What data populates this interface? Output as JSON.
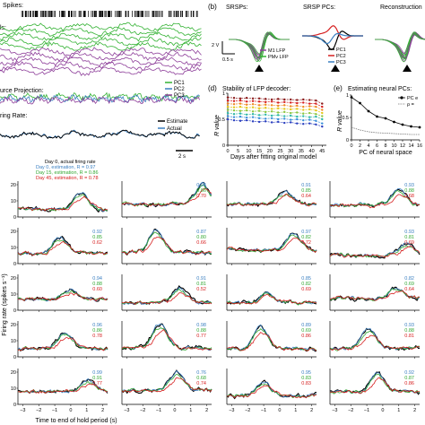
{
  "top": {
    "spikes_label": "Spikes:",
    "lfp_label": "ls:",
    "source_label": "urce Projection:",
    "rate_label": "ring Rate:",
    "pc_legend": [
      "PC1",
      "PC2",
      "PC3"
    ],
    "rate_legend": [
      "Estimate",
      "Actual"
    ],
    "scale_label": "2 s",
    "colors": {
      "green": "#33b233",
      "purple": "#8e3f9a",
      "blue": "#3a7fc1",
      "black": "#000000",
      "red": "#d62020",
      "gray": "#777777"
    }
  },
  "panel_b": {
    "letter": "(b)",
    "titles": [
      "SRSPs:",
      "SRSP PCs:",
      "Reconstruction"
    ],
    "scale_v": "2 V",
    "scale_t": "0.5 s",
    "legend": [
      "M1 LFP",
      "PMv LFP"
    ],
    "pc_legend": [
      "PC1",
      "PC2",
      "PC3"
    ]
  },
  "panel_d": {
    "letter": "(d)",
    "title": "Stability of LFP decoder:",
    "ylabel": "R value",
    "xlabel": "Days after fitting original model",
    "chart_data": {
      "type": "line",
      "x": [
        0,
        3,
        6,
        9,
        12,
        15,
        18,
        21,
        24,
        27,
        30,
        33,
        36,
        39,
        42,
        45
      ],
      "xticks": [
        0,
        5,
        10,
        15,
        20,
        25,
        30,
        35,
        40,
        45
      ],
      "yticks": [
        0,
        0.5,
        1
      ],
      "ylim": [
        0,
        1
      ],
      "xlim": [
        0,
        47
      ],
      "series": [
        {
          "color": "#8b1a1a",
          "values": [
            0.92,
            0.91,
            0.9,
            0.91,
            0.9,
            0.9,
            0.89,
            0.88,
            0.89,
            0.88,
            0.88,
            0.87,
            0.88,
            0.87,
            0.86,
            0.8
          ]
        },
        {
          "color": "#d62020",
          "values": [
            0.86,
            0.85,
            0.86,
            0.84,
            0.85,
            0.84,
            0.83,
            0.84,
            0.82,
            0.83,
            0.82,
            0.81,
            0.82,
            0.8,
            0.8,
            0.74
          ]
        },
        {
          "color": "#f08a24",
          "values": [
            0.8,
            0.79,
            0.8,
            0.78,
            0.79,
            0.77,
            0.78,
            0.77,
            0.76,
            0.77,
            0.75,
            0.76,
            0.74,
            0.75,
            0.74,
            0.68
          ]
        },
        {
          "color": "#e6c619",
          "values": [
            0.74,
            0.73,
            0.74,
            0.72,
            0.73,
            0.71,
            0.72,
            0.7,
            0.71,
            0.7,
            0.69,
            0.7,
            0.68,
            0.69,
            0.67,
            0.62
          ]
        },
        {
          "color": "#8cc63f",
          "values": [
            0.68,
            0.67,
            0.66,
            0.67,
            0.65,
            0.66,
            0.64,
            0.65,
            0.63,
            0.64,
            0.62,
            0.63,
            0.61,
            0.62,
            0.6,
            0.56
          ]
        },
        {
          "color": "#2eb8a6",
          "values": [
            0.62,
            0.6,
            0.61,
            0.59,
            0.6,
            0.58,
            0.59,
            0.57,
            0.58,
            0.56,
            0.57,
            0.55,
            0.56,
            0.54,
            0.55,
            0.5
          ]
        },
        {
          "color": "#3a8fd9",
          "values": [
            0.56,
            0.54,
            0.55,
            0.53,
            0.54,
            0.52,
            0.51,
            0.52,
            0.5,
            0.51,
            0.49,
            0.5,
            0.48,
            0.49,
            0.47,
            0.42
          ]
        },
        {
          "color": "#2a3fbf",
          "values": [
            0.5,
            0.48,
            0.47,
            0.48,
            0.46,
            0.45,
            0.46,
            0.44,
            0.45,
            0.43,
            0.44,
            0.42,
            0.41,
            0.42,
            0.4,
            0.36
          ]
        }
      ]
    }
  },
  "panel_e": {
    "letter": "(e)",
    "title": "Estimating neural PCs:",
    "ylabel": "R value",
    "xlabel": "PC of neural space",
    "legend": [
      "PC e",
      "ρ ="
    ],
    "chart_data": {
      "type": "line",
      "x": [
        0,
        2,
        4,
        6,
        8,
        10,
        12,
        14,
        16
      ],
      "xticks": [
        0,
        2,
        4,
        6,
        8,
        10,
        12,
        14,
        16
      ],
      "yticks": [
        0,
        0.5,
        1
      ],
      "ylim": [
        0,
        1
      ],
      "series": [
        {
          "name": "PC e",
          "values": [
            0.95,
            0.82,
            0.64,
            0.52,
            0.48,
            0.4,
            0.34,
            0.3,
            0.28
          ]
        },
        {
          "name": "ρ =",
          "values": [
            0.28,
            0.22,
            0.18,
            0.16,
            0.15,
            0.14,
            0.13,
            0.12,
            0.12
          ]
        }
      ]
    }
  },
  "grid": {
    "ylabel": "Firing rate (spikes s⁻¹)",
    "xlabel": "Time to end of hold period (s)",
    "legend": [
      {
        "text": "Day 0, actual firing rate",
        "color": "#000000"
      },
      {
        "text": "Day 0, estimation, R = 0.97",
        "color": "#3a7fc1"
      },
      {
        "text": "Day 15, estimation, R = 0.86",
        "color": "#33a833"
      },
      {
        "text": "Day 45, estimation, R = 0.78",
        "color": "#d62020"
      }
    ],
    "first_yticks": [
      "20",
      "10",
      "0"
    ],
    "xticks": [
      "−3",
      "−2",
      "−1",
      "0",
      "1",
      "2"
    ],
    "rvalues": [
      [
        null,
        [
          "0.94",
          "0.86",
          "0.70"
        ],
        [
          "0.91",
          "0.85",
          "0.64"
        ],
        [
          "0.93",
          "0.88",
          "0.68"
        ]
      ],
      [
        [
          "0.92",
          "0.85",
          "0.62"
        ],
        [
          "0.87",
          "0.80",
          "0.66"
        ],
        [
          "0.97",
          "0.82",
          "0.72"
        ],
        [
          "0.93",
          "0.81",
          "0.69"
        ]
      ],
      [
        [
          "0.94",
          "0.88",
          "0.60"
        ],
        [
          "0.91",
          "0.81",
          "0.52"
        ],
        [
          "0.85",
          "0.82",
          "0.69"
        ],
        [
          "0.82",
          "0.69",
          "0.64"
        ]
      ],
      [
        [
          "0.96",
          "0.86",
          "0.78"
        ],
        [
          "0.98",
          "0.88",
          "0.77"
        ],
        [
          "0.89",
          "0.69",
          "0.86"
        ],
        [
          "0.93",
          "0.88",
          "0.81"
        ]
      ],
      [
        [
          "0.99",
          "0.91",
          "0.77"
        ],
        [
          "0.76",
          "0.68",
          "0.74"
        ],
        [
          "0.95",
          "0.83",
          "0.83"
        ],
        [
          "0.92",
          "0.87",
          "0.86"
        ]
      ]
    ]
  }
}
